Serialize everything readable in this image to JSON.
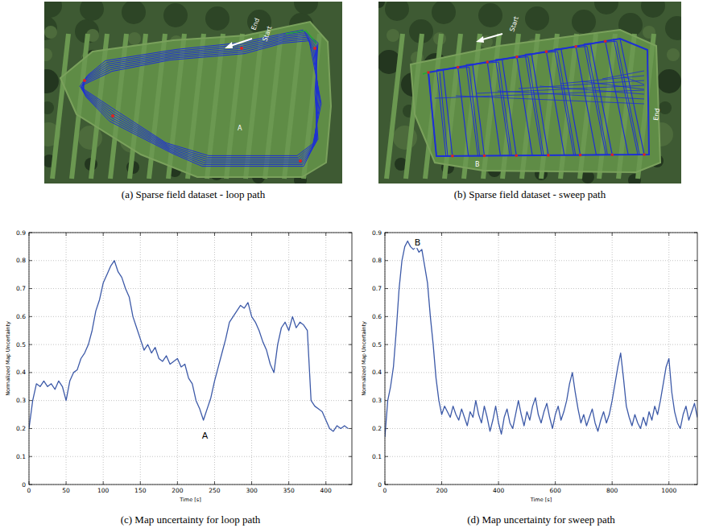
{
  "images": [
    {
      "caption": "(a) Sparse field dataset - loop path",
      "labels": [
        "End",
        "Start",
        "A"
      ]
    },
    {
      "caption": "(b) Sparse field dataset - sweep path",
      "labels": [
        "Start",
        "End",
        "B"
      ]
    }
  ],
  "chart_data": [
    {
      "type": "line",
      "title": "(c) Map uncertainty for loop path",
      "x_label": "Time [s]",
      "y_label": "Normalized Map Uncertainty",
      "color": "#3d5aa8",
      "grid": true,
      "xlim": [
        0,
        435
      ],
      "ylim": [
        0,
        0.9
      ],
      "xticks": [
        0,
        50,
        100,
        150,
        200,
        250,
        300,
        350,
        400
      ],
      "yticks": [
        0,
        0.1,
        0.2,
        0.3,
        0.4,
        0.5,
        0.6,
        0.7,
        0.8,
        0.9
      ],
      "annotations": [
        {
          "text": "A",
          "x": 237,
          "y": 0.175
        }
      ],
      "x": [
        0,
        5,
        10,
        15,
        20,
        25,
        30,
        35,
        40,
        45,
        50,
        55,
        60,
        65,
        70,
        75,
        80,
        85,
        90,
        95,
        100,
        105,
        110,
        115,
        120,
        125,
        130,
        135,
        140,
        145,
        150,
        155,
        160,
        165,
        170,
        175,
        180,
        185,
        190,
        195,
        200,
        205,
        210,
        215,
        220,
        225,
        230,
        235,
        240,
        245,
        250,
        255,
        260,
        265,
        270,
        275,
        280,
        285,
        290,
        295,
        300,
        305,
        310,
        315,
        320,
        325,
        330,
        335,
        340,
        345,
        350,
        355,
        360,
        365,
        370,
        375,
        380,
        385,
        390,
        395,
        400,
        405,
        410,
        415,
        420,
        425,
        430
      ],
      "values": [
        0.2,
        0.3,
        0.36,
        0.35,
        0.37,
        0.35,
        0.36,
        0.34,
        0.37,
        0.35,
        0.3,
        0.37,
        0.4,
        0.41,
        0.45,
        0.47,
        0.5,
        0.55,
        0.62,
        0.66,
        0.72,
        0.75,
        0.78,
        0.8,
        0.76,
        0.74,
        0.7,
        0.67,
        0.6,
        0.56,
        0.52,
        0.48,
        0.5,
        0.47,
        0.49,
        0.45,
        0.44,
        0.46,
        0.43,
        0.44,
        0.45,
        0.42,
        0.43,
        0.38,
        0.36,
        0.3,
        0.27,
        0.23,
        0.27,
        0.31,
        0.37,
        0.42,
        0.47,
        0.52,
        0.58,
        0.6,
        0.62,
        0.64,
        0.63,
        0.65,
        0.6,
        0.58,
        0.55,
        0.51,
        0.48,
        0.43,
        0.4,
        0.5,
        0.56,
        0.58,
        0.55,
        0.6,
        0.56,
        0.58,
        0.57,
        0.55,
        0.3,
        0.28,
        0.27,
        0.26,
        0.23,
        0.2,
        0.19,
        0.21,
        0.2,
        0.21,
        0.2
      ]
    },
    {
      "type": "line",
      "title": "(d) Map uncertainty for sweep path",
      "x_label": "Time [s]",
      "y_label": "Normalized Map Uncertainty",
      "color": "#3d5aa8",
      "grid": true,
      "xlim": [
        0,
        1100
      ],
      "ylim": [
        0,
        0.9
      ],
      "xticks": [
        0,
        200,
        400,
        600,
        800,
        1000
      ],
      "yticks": [
        0,
        0.1,
        0.2,
        0.3,
        0.4,
        0.5,
        0.6,
        0.7,
        0.8,
        0.9
      ],
      "annotations": [
        {
          "text": "B",
          "x": 115,
          "y": 0.865
        }
      ],
      "x": [
        0,
        10,
        20,
        30,
        40,
        50,
        60,
        70,
        80,
        90,
        100,
        110,
        120,
        130,
        140,
        150,
        160,
        170,
        180,
        190,
        200,
        210,
        220,
        230,
        240,
        250,
        260,
        270,
        280,
        290,
        300,
        310,
        320,
        330,
        340,
        350,
        360,
        370,
        380,
        390,
        400,
        410,
        420,
        430,
        440,
        450,
        460,
        470,
        480,
        490,
        500,
        510,
        520,
        530,
        540,
        550,
        560,
        570,
        580,
        590,
        600,
        610,
        620,
        630,
        640,
        650,
        660,
        670,
        680,
        690,
        700,
        710,
        720,
        730,
        740,
        750,
        760,
        770,
        780,
        790,
        800,
        810,
        820,
        830,
        840,
        850,
        860,
        870,
        880,
        890,
        900,
        910,
        920,
        930,
        940,
        950,
        960,
        970,
        980,
        990,
        1000,
        1010,
        1020,
        1030,
        1040,
        1050,
        1060,
        1070,
        1080,
        1090,
        1100
      ],
      "values": [
        0.17,
        0.3,
        0.35,
        0.42,
        0.55,
        0.7,
        0.8,
        0.85,
        0.87,
        0.85,
        0.84,
        0.85,
        0.83,
        0.84,
        0.78,
        0.72,
        0.6,
        0.5,
        0.38,
        0.3,
        0.25,
        0.28,
        0.26,
        0.24,
        0.28,
        0.25,
        0.23,
        0.27,
        0.24,
        0.21,
        0.26,
        0.24,
        0.3,
        0.25,
        0.22,
        0.28,
        0.24,
        0.19,
        0.23,
        0.28,
        0.22,
        0.18,
        0.24,
        0.27,
        0.22,
        0.2,
        0.25,
        0.3,
        0.25,
        0.21,
        0.26,
        0.23,
        0.28,
        0.31,
        0.25,
        0.22,
        0.26,
        0.29,
        0.24,
        0.2,
        0.25,
        0.28,
        0.23,
        0.26,
        0.3,
        0.36,
        0.4,
        0.33,
        0.27,
        0.22,
        0.25,
        0.21,
        0.24,
        0.27,
        0.22,
        0.19,
        0.23,
        0.26,
        0.22,
        0.25,
        0.3,
        0.36,
        0.42,
        0.47,
        0.38,
        0.28,
        0.24,
        0.21,
        0.25,
        0.22,
        0.2,
        0.24,
        0.21,
        0.26,
        0.23,
        0.28,
        0.25,
        0.3,
        0.36,
        0.42,
        0.45,
        0.33,
        0.26,
        0.22,
        0.2,
        0.25,
        0.28,
        0.23,
        0.26,
        0.29,
        0.24
      ]
    }
  ]
}
